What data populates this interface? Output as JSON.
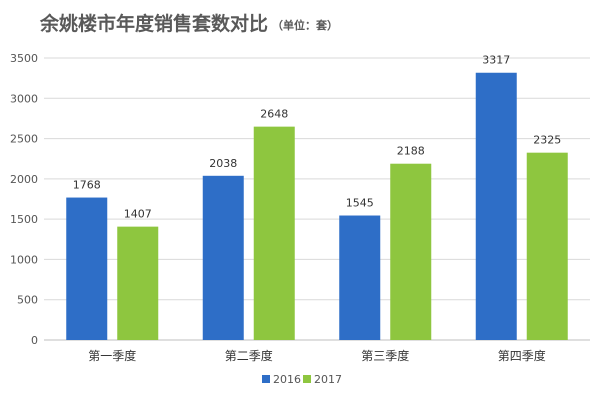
{
  "chart_data": {
    "type": "bar",
    "title": "余姚楼市年度销售套数对比",
    "subtitle": "（单位：套）",
    "categories": [
      "第一季度",
      "第二季度",
      "第三季度",
      "第四季度"
    ],
    "series": [
      {
        "name": "2016",
        "color": "#2e6ec7",
        "values": [
          1768,
          2038,
          1545,
          3317
        ]
      },
      {
        "name": "2017",
        "color": "#8ec63f",
        "values": [
          1407,
          2648,
          2188,
          2325
        ]
      }
    ],
    "yticks": [
      0,
      500,
      1000,
      1500,
      2000,
      2500,
      3000,
      3500
    ],
    "ylim": [
      0,
      3500
    ],
    "grid": true,
    "legend": "bottom-center"
  }
}
